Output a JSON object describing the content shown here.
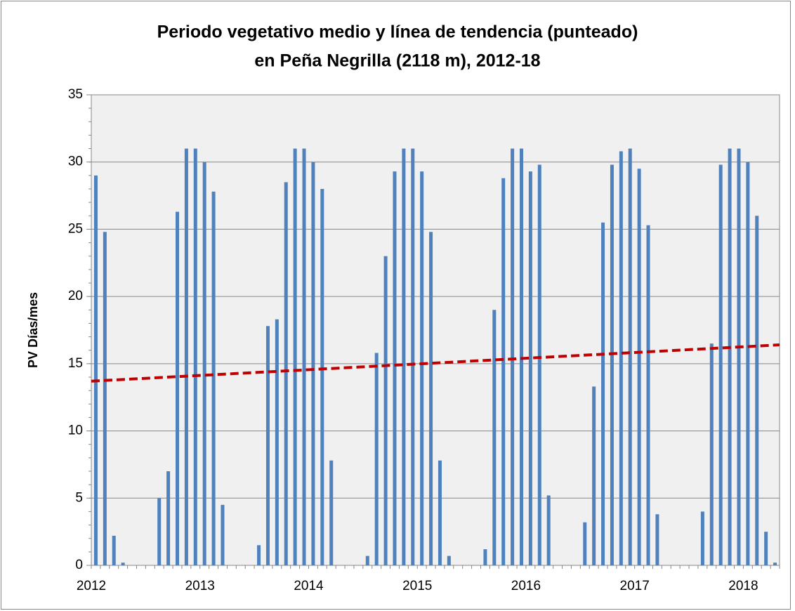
{
  "chart_data": {
    "type": "bar",
    "title": [
      "Periodo vegetativo medio y línea de tendencia (punteado)",
      "en Peña Negrilla (2118 m), 2012-18"
    ],
    "y_label": "PV Días/mes",
    "categories": [
      "2012",
      null,
      null,
      null,
      null,
      null,
      null,
      null,
      null,
      null,
      null,
      null,
      "2013",
      null,
      null,
      null,
      null,
      null,
      null,
      null,
      null,
      null,
      null,
      null,
      "2014",
      null,
      null,
      null,
      null,
      null,
      null,
      null,
      null,
      null,
      null,
      null,
      "2015",
      null,
      null,
      null,
      null,
      null,
      null,
      null,
      null,
      null,
      null,
      null,
      "2016",
      null,
      null,
      null,
      null,
      null,
      null,
      null,
      null,
      null,
      null,
      null,
      "2017",
      null,
      null,
      null,
      null,
      null,
      null,
      null,
      null,
      null,
      null,
      null,
      "2018",
      null,
      null,
      null
    ],
    "values": [
      29,
      24.8,
      2.2,
      0.2,
      0,
      0,
      0,
      5,
      7,
      26.3,
      31,
      31,
      30,
      27.8,
      4.5,
      0,
      0,
      0,
      1.5,
      17.8,
      18.3,
      28.5,
      31,
      31,
      30,
      28,
      7.8,
      0,
      0,
      0,
      0.7,
      15.8,
      23,
      29.3,
      31,
      31,
      29.3,
      24.8,
      7.8,
      0.7,
      0,
      0,
      0,
      1.2,
      19,
      28.8,
      31,
      31,
      29.3,
      29.8,
      5.2,
      0,
      0,
      0,
      3.2,
      13.3,
      25.5,
      29.8,
      30.8,
      31,
      29.5,
      25.3,
      3.8,
      0,
      0,
      0,
      0,
      4,
      16.5,
      29.8,
      31,
      31,
      30,
      26,
      2.5,
      0.2
    ],
    "color": "#4f81bd",
    "trendline": {
      "values": [
        13.7,
        16.4
      ],
      "color": "#c00000",
      "dashed": true
    },
    "ylim": [
      0,
      35
    ],
    "yticks": [
      0,
      5,
      10,
      15,
      20,
      25,
      30,
      35
    ],
    "grid": true
  }
}
